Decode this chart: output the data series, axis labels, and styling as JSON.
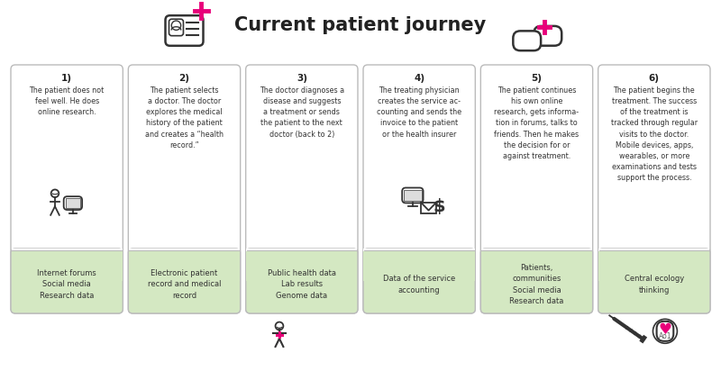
{
  "title": "Current patient journey",
  "title_fontsize": 15,
  "background_color": "#ffffff",
  "card_border": "#cccccc",
  "green_bg": "#d4e8c2",
  "cards": [
    {
      "number": "1)",
      "text": "The patient does not\nfeel well. He does\nonline research.",
      "footer": "Internet forums\nSocial media\nResearch data",
      "icon": "person_computer"
    },
    {
      "number": "2)",
      "text": "The patient selects\na doctor. The doctor\nexplores the medical\nhistory of the patient\nand creates a “health\nrecord.”",
      "footer": "Electronic patient\nrecord and medical\nrecord",
      "icon": "id_card_plus",
      "top_icon": true
    },
    {
      "number": "3)",
      "text": "The doctor diagnoses a\ndisease and suggests\na treatment or sends\nthe patient to the next\ndoctor (back to 2)",
      "footer": "Public health data\nLab results\nGenome data",
      "icon": "none"
    },
    {
      "number": "4)",
      "text": "The treating physician\ncreates the service ac-\ncounting and sends the\ninvoice to the patient\nor the health insurer",
      "footer": "Data of the service\naccounting",
      "icon": "computer_money"
    },
    {
      "number": "5)",
      "text": "The patient continues\nhis own online\nresearch, gets informa-\ntion in forums, talks to\nfriends. Then he makes\nthe decision for or\nagainst treatment.",
      "footer": "Patients,\ncommunities\nSocial media\nResearch data",
      "icon": "chat_plus",
      "top_icon": true
    },
    {
      "number": "6)",
      "text": "The patient begins the\ntreatment. The success\nof the treatment is\ntracked through regular\nvisits to the doctor.\nMobile devices, apps,\nwearables, or more\nexaminations and tests\nsupport the process.",
      "footer": "Central ecology\nthinking",
      "icon": "syringe_heart"
    }
  ],
  "pink": "#e8007a",
  "dark": "#222222",
  "border_color": "#bbbbbb"
}
